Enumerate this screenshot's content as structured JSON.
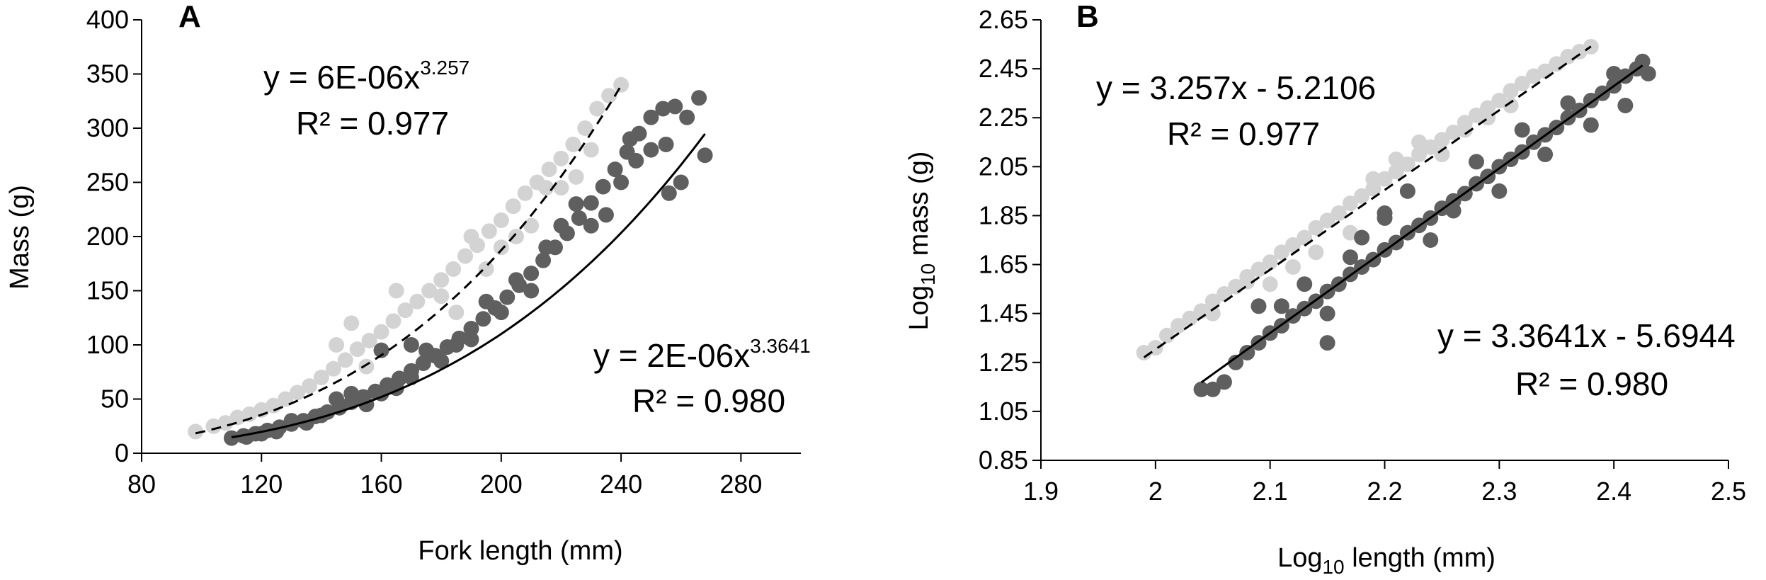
{
  "chart_data": [
    {
      "type": "scatter",
      "panel": "A",
      "xlabel": "Fork length (mm)",
      "ylabel": "Mass (g)",
      "xlim": [
        80,
        300
      ],
      "ylim": [
        0,
        400
      ],
      "xticks": [
        80,
        120,
        160,
        200,
        240,
        280
      ],
      "yticks": [
        0,
        50,
        100,
        150,
        200,
        250,
        300,
        350,
        400
      ],
      "grid": false,
      "series": [
        {
          "color": "#d3d3d3",
          "points": [
            [
              98,
              20
            ],
            [
              104,
              25
            ],
            [
              108,
              28
            ],
            [
              112,
              33
            ],
            [
              116,
              36
            ],
            [
              120,
              40
            ],
            [
              124,
              44
            ],
            [
              128,
              50
            ],
            [
              132,
              56
            ],
            [
              136,
              62
            ],
            [
              140,
              70
            ],
            [
              144,
              78
            ],
            [
              148,
              86
            ],
            [
              152,
              96
            ],
            [
              156,
              104
            ],
            [
              160,
              112
            ],
            [
              164,
              122
            ],
            [
              168,
              132
            ],
            [
              172,
              140
            ],
            [
              176,
              150
            ],
            [
              180,
              160
            ],
            [
              184,
              170
            ],
            [
              188,
              182
            ],
            [
              192,
              192
            ],
            [
              196,
              205
            ],
            [
              200,
              215
            ],
            [
              204,
              228
            ],
            [
              208,
              240
            ],
            [
              212,
              250
            ],
            [
              216,
              262
            ],
            [
              220,
              272
            ],
            [
              224,
              285
            ],
            [
              228,
              300
            ],
            [
              232,
              318
            ],
            [
              236,
              330
            ],
            [
              240,
              340
            ],
            [
              150,
              120
            ],
            [
              155,
              80
            ],
            [
              170,
              100
            ],
            [
              175,
              90
            ],
            [
              185,
              130
            ],
            [
              195,
              170
            ],
            [
              200,
              190
            ],
            [
              210,
              210
            ],
            [
              215,
              245
            ],
            [
              220,
              245
            ],
            [
              225,
              255
            ],
            [
              230,
              280
            ],
            [
              145,
              100
            ],
            [
              165,
              150
            ],
            [
              180,
              145
            ],
            [
              190,
              200
            ],
            [
              205,
              200
            ]
          ],
          "fit": {
            "kind": "power",
            "a": 6e-06,
            "b": 3.257,
            "x_range": [
              98,
              240
            ],
            "style": "dashed",
            "color": "#000000"
          }
        },
        {
          "color": "#5f5f5f",
          "points": [
            [
              110,
              14
            ],
            [
              114,
              16
            ],
            [
              118,
              18
            ],
            [
              122,
              21
            ],
            [
              126,
              24
            ],
            [
              130,
              27
            ],
            [
              134,
              30
            ],
            [
              138,
              34
            ],
            [
              142,
              38
            ],
            [
              146,
              42
            ],
            [
              150,
              47
            ],
            [
              154,
              52
            ],
            [
              158,
              57
            ],
            [
              162,
              63
            ],
            [
              166,
              69
            ],
            [
              170,
              76
            ],
            [
              174,
              83
            ],
            [
              178,
              90
            ],
            [
              182,
              98
            ],
            [
              186,
              106
            ],
            [
              190,
              115
            ],
            [
              194,
              124
            ],
            [
              198,
              134
            ],
            [
              202,
              144
            ],
            [
              206,
              155
            ],
            [
              210,
              166
            ],
            [
              214,
              178
            ],
            [
              218,
              190
            ],
            [
              222,
              203
            ],
            [
              226,
              217
            ],
            [
              230,
              231
            ],
            [
              234,
              246
            ],
            [
              238,
              262
            ],
            [
              242,
              278
            ],
            [
              246,
              295
            ],
            [
              250,
              310
            ],
            [
              254,
              318
            ],
            [
              258,
              320
            ],
            [
              262,
              310
            ],
            [
              266,
              328
            ],
            [
              268,
              275
            ],
            [
              260,
              250
            ],
            [
              256,
              240
            ],
            [
              250,
              280
            ],
            [
              245,
              270
            ],
            [
              240,
              250
            ],
            [
              235,
              220
            ],
            [
              230,
              210
            ],
            [
              225,
              230
            ],
            [
              220,
              210
            ],
            [
              215,
              190
            ],
            [
              210,
              150
            ],
            [
              205,
              160
            ],
            [
              200,
              130
            ],
            [
              195,
              140
            ],
            [
              190,
              105
            ],
            [
              185,
              100
            ],
            [
              180,
              85
            ],
            [
              175,
              95
            ],
            [
              170,
              70
            ],
            [
              165,
              60
            ],
            [
              160,
              55
            ],
            [
              155,
              45
            ],
            [
              150,
              55
            ],
            [
              145,
              50
            ],
            [
              140,
              35
            ],
            [
              135,
              28
            ],
            [
              130,
              30
            ],
            [
              125,
              20
            ],
            [
              120,
              18
            ],
            [
              115,
              15
            ],
            [
              160,
              95
            ],
            [
              170,
              100
            ],
            [
              243,
              290
            ],
            [
              255,
              285
            ]
          ],
          "fit": {
            "kind": "power",
            "a": 2e-06,
            "b": 3.3641,
            "x_range": [
              110,
              268
            ],
            "style": "solid",
            "color": "#000000"
          }
        }
      ],
      "annotations": [
        {
          "base": "y = 6E-06x",
          "sup": "3.257",
          "r2": "R² = 0.977"
        },
        {
          "base": "y = 2E-06x",
          "sup": "3.3641",
          "r2": "R² = 0.980"
        }
      ]
    },
    {
      "type": "scatter",
      "panel": "B",
      "xlabel": "Log10 length (mm)",
      "ylabel": "Log10 mass (g)",
      "xlim": [
        1.9,
        2.5
      ],
      "ylim": [
        0.85,
        2.65
      ],
      "xticks": [
        "1.9",
        "2",
        "2.1",
        "2.2",
        "2.3",
        "2.4",
        "2.5"
      ],
      "yticks": [
        "0.85",
        "1.05",
        "1.25",
        "1.45",
        "1.65",
        "1.85",
        "2.05",
        "2.25",
        "2.45",
        "2.65"
      ],
      "grid": false,
      "series": [
        {
          "color": "#d3d3d3",
          "points": [
            [
              1.99,
              1.29
            ],
            [
              2.0,
              1.31
            ],
            [
              2.01,
              1.36
            ],
            [
              2.02,
              1.4
            ],
            [
              2.03,
              1.43
            ],
            [
              2.04,
              1.46
            ],
            [
              2.05,
              1.5
            ],
            [
              2.06,
              1.53
            ],
            [
              2.07,
              1.56
            ],
            [
              2.08,
              1.6
            ],
            [
              2.09,
              1.63
            ],
            [
              2.1,
              1.66
            ],
            [
              2.11,
              1.7
            ],
            [
              2.12,
              1.73
            ],
            [
              2.13,
              1.76
            ],
            [
              2.14,
              1.8
            ],
            [
              2.15,
              1.83
            ],
            [
              2.16,
              1.86
            ],
            [
              2.17,
              1.9
            ],
            [
              2.18,
              1.93
            ],
            [
              2.19,
              1.96
            ],
            [
              2.2,
              2.0
            ],
            [
              2.21,
              2.03
            ],
            [
              2.22,
              2.06
            ],
            [
              2.23,
              2.1
            ],
            [
              2.24,
              2.13
            ],
            [
              2.25,
              2.16
            ],
            [
              2.26,
              2.19
            ],
            [
              2.27,
              2.23
            ],
            [
              2.28,
              2.26
            ],
            [
              2.29,
              2.29
            ],
            [
              2.3,
              2.32
            ],
            [
              2.31,
              2.36
            ],
            [
              2.32,
              2.39
            ],
            [
              2.33,
              2.42
            ],
            [
              2.34,
              2.44
            ],
            [
              2.35,
              2.47
            ],
            [
              2.36,
              2.5
            ],
            [
              2.37,
              2.52
            ],
            [
              2.38,
              2.54
            ],
            [
              2.1,
              1.57
            ],
            [
              2.12,
              1.64
            ],
            [
              2.14,
              1.7
            ],
            [
              2.16,
              1.86
            ],
            [
              2.17,
              1.78
            ],
            [
              2.19,
              2.0
            ],
            [
              2.21,
              2.08
            ],
            [
              2.23,
              2.15
            ],
            [
              2.25,
              2.1
            ],
            [
              2.27,
              2.2
            ],
            [
              2.29,
              2.25
            ],
            [
              2.31,
              2.3
            ],
            [
              2.05,
              1.45
            ],
            [
              2.08,
              1.58
            ]
          ],
          "fit": {
            "kind": "linear",
            "a": 3.257,
            "b": -5.2106,
            "x_range": [
              1.99,
              2.38
            ],
            "style": "dashed",
            "color": "#000000"
          }
        },
        {
          "color": "#5f5f5f",
          "points": [
            [
              2.04,
              1.14
            ],
            [
              2.05,
              1.14
            ],
            [
              2.06,
              1.17
            ],
            [
              2.07,
              1.25
            ],
            [
              2.08,
              1.29
            ],
            [
              2.09,
              1.33
            ],
            [
              2.1,
              1.37
            ],
            [
              2.11,
              1.4
            ],
            [
              2.12,
              1.44
            ],
            [
              2.13,
              1.47
            ],
            [
              2.14,
              1.5
            ],
            [
              2.15,
              1.54
            ],
            [
              2.16,
              1.57
            ],
            [
              2.17,
              1.61
            ],
            [
              2.18,
              1.64
            ],
            [
              2.19,
              1.67
            ],
            [
              2.2,
              1.71
            ],
            [
              2.21,
              1.74
            ],
            [
              2.22,
              1.78
            ],
            [
              2.23,
              1.81
            ],
            [
              2.24,
              1.84
            ],
            [
              2.25,
              1.88
            ],
            [
              2.26,
              1.91
            ],
            [
              2.27,
              1.94
            ],
            [
              2.28,
              1.98
            ],
            [
              2.29,
              2.01
            ],
            [
              2.3,
              2.05
            ],
            [
              2.31,
              2.08
            ],
            [
              2.32,
              2.11
            ],
            [
              2.33,
              2.15
            ],
            [
              2.34,
              2.18
            ],
            [
              2.35,
              2.21
            ],
            [
              2.36,
              2.25
            ],
            [
              2.37,
              2.28
            ],
            [
              2.38,
              2.32
            ],
            [
              2.39,
              2.35
            ],
            [
              2.4,
              2.38
            ],
            [
              2.41,
              2.42
            ],
            [
              2.42,
              2.45
            ],
            [
              2.425,
              2.48
            ],
            [
              2.43,
              2.43
            ],
            [
              2.09,
              1.48
            ],
            [
              2.11,
              1.48
            ],
            [
              2.13,
              1.57
            ],
            [
              2.15,
              1.45
            ],
            [
              2.15,
              1.33
            ],
            [
              2.18,
              1.76
            ],
            [
              2.2,
              1.84
            ],
            [
              2.22,
              1.95
            ],
            [
              2.24,
              1.75
            ],
            [
              2.26,
              1.87
            ],
            [
              2.28,
              2.07
            ],
            [
              2.3,
              1.95
            ],
            [
              2.32,
              2.2
            ],
            [
              2.34,
              2.1
            ],
            [
              2.36,
              2.31
            ],
            [
              2.38,
              2.22
            ],
            [
              2.4,
              2.43
            ],
            [
              2.41,
              2.3
            ],
            [
              2.2,
              1.86
            ],
            [
              2.17,
              1.68
            ]
          ],
          "fit": {
            "kind": "linear",
            "a": 3.3641,
            "b": -5.6944,
            "x_range": [
              2.04,
              2.425
            ],
            "style": "solid",
            "color": "#000000"
          }
        }
      ],
      "annotations": [
        {
          "text": "y = 3.257x - 5.2106",
          "r2": "R² = 0.977"
        },
        {
          "text": "y = 3.3641x - 5.6944",
          "r2": "R² = 0.980"
        }
      ]
    }
  ],
  "panelA": {
    "letter": "A",
    "xlabel": "Fork length (mm)",
    "ylabel": "Mass (g)",
    "eq1_base": "y = 6E-06x",
    "eq1_sup": "3.257",
    "eq1_r2": "R² = 0.977",
    "eq2_base": "y = 2E-06x",
    "eq2_sup": "3.3641",
    "eq2_r2": "R² = 0.980"
  },
  "panelB": {
    "letter": "B",
    "xlabel_pre": "Log",
    "xlabel_sub": "10",
    "xlabel_post": " length (mm)",
    "ylabel_pre": "Log",
    "ylabel_sub": "10",
    "ylabel_post": " mass (g)",
    "eq1": "y = 3.257x - 5.2106",
    "eq1_r2": "R² = 0.977",
    "eq2": "y = 3.3641x - 5.6944",
    "eq2_r2": "R² = 0.980"
  }
}
